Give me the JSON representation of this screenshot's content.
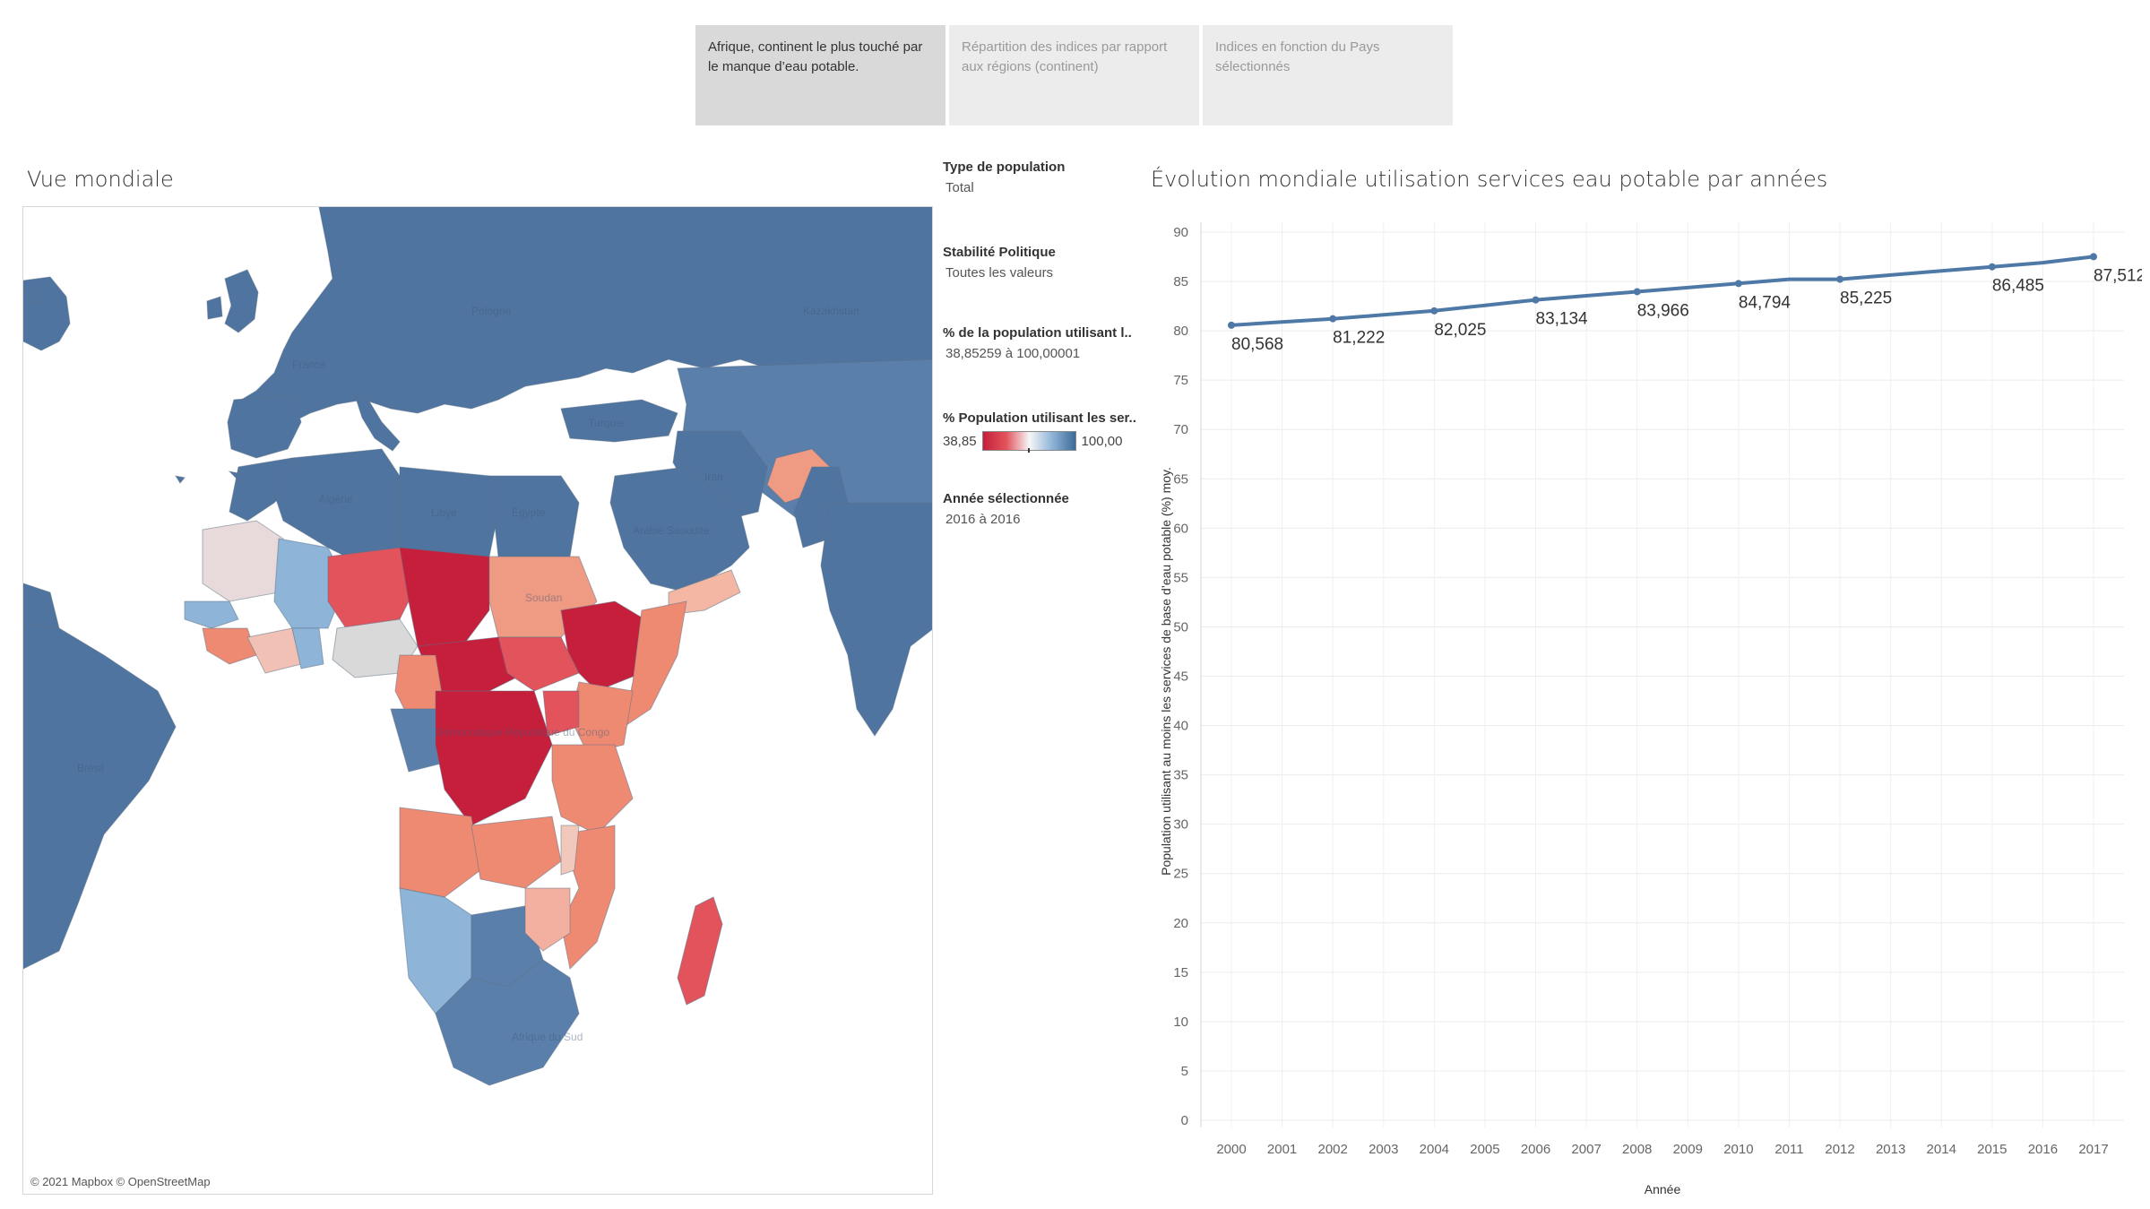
{
  "tabs": [
    {
      "label": "Afrique, continent le plus touché par le manque d’eau potable.",
      "active": true
    },
    {
      "label": "Répartition des indices par rapport aux régions (continent)",
      "active": false
    },
    {
      "label": "Indices en fonction du Pays sélectionnés",
      "active": false
    }
  ],
  "map": {
    "title": "Vue mondiale",
    "attribution": "© 2021 Mapbox © OpenStreetMap",
    "colors": {
      "ocean": "#ffffff",
      "high": "#4f74a0",
      "mid_high": "#8eb4d8",
      "neutral": "#e8dada",
      "mid_low": "#ef8a72",
      "low": "#c61f3c",
      "nodata": "#d9d9d9"
    },
    "labels": [
      "Algérie",
      "Libye",
      "Égypte",
      "Arabie Saoudite",
      "Soudan",
      "Démocratique République du Congo",
      "Brésil",
      "Afrique du Sud",
      "Turquie",
      "Kazakhstan",
      "Iran",
      "Pologne",
      "France"
    ]
  },
  "filters": {
    "pop_type": {
      "label": "Type de population",
      "value": "Total"
    },
    "stability": {
      "label": "Stabilité Politique",
      "value": "Toutes les valeurs"
    },
    "pct_range": {
      "label": "% de la population utilisant l..",
      "value": "38,85259 à 100,00001"
    },
    "pct_legend": {
      "label": "% Population utilisant les ser..",
      "min": "38,85",
      "max": "100,00"
    },
    "year": {
      "label": "Année sélectionnée",
      "value": "2016 à 2016"
    }
  },
  "chart_title": "Évolution mondiale utilisation services eau potable par années",
  "chart_data": {
    "type": "line",
    "title": "Évolution mondiale utilisation services eau potable par années",
    "xlabel": "Année",
    "ylabel": "Population utilisant au moins les services de base d’eau potable (%) moy.",
    "x": [
      2000,
      2001,
      2002,
      2003,
      2004,
      2005,
      2006,
      2007,
      2008,
      2009,
      2010,
      2011,
      2012,
      2013,
      2014,
      2015,
      2016,
      2017
    ],
    "values": [
      80.568,
      80.9,
      81.222,
      81.62,
      82.025,
      82.58,
      83.134,
      83.55,
      83.966,
      84.38,
      84.794,
      85.22,
      85.225,
      85.65,
      86.07,
      86.485,
      86.9,
      87.512
    ],
    "data_labels": [
      {
        "x": 2000,
        "text": "80,568"
      },
      {
        "x": 2002,
        "text": "81,222"
      },
      {
        "x": 2004,
        "text": "82,025"
      },
      {
        "x": 2006,
        "text": "83,134"
      },
      {
        "x": 2008,
        "text": "83,966"
      },
      {
        "x": 2010,
        "text": "84,794"
      },
      {
        "x": 2012,
        "text": "85,225"
      },
      {
        "x": 2015,
        "text": "86,485"
      },
      {
        "x": 2017,
        "text": "87,512"
      }
    ],
    "yticks": [
      0,
      5,
      10,
      15,
      20,
      25,
      30,
      35,
      40,
      45,
      50,
      55,
      60,
      65,
      70,
      75,
      80,
      85,
      90
    ],
    "ylim": [
      0,
      91
    ],
    "grid": true,
    "line_color": "#4e79a7"
  }
}
